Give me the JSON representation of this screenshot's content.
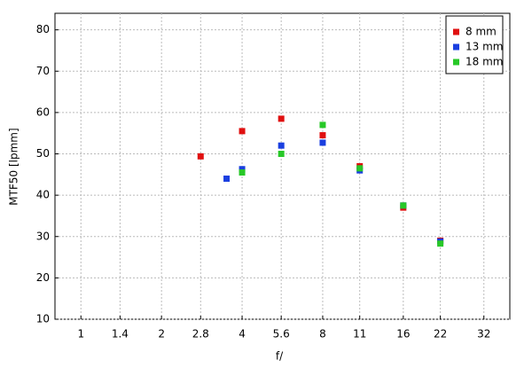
{
  "chart_data": {
    "type": "scatter",
    "x_label": "f/",
    "y_label": "MTF50 [lpmm]",
    "xscale": "log",
    "grid": true,
    "legend": "top-right",
    "xlim": [
      0.8,
      40
    ],
    "xticks": [
      1,
      1.4,
      2,
      2.8,
      4,
      5.6,
      8,
      11,
      16,
      22,
      32
    ],
    "ylim": [
      10,
      84
    ],
    "yticks": [
      10,
      20,
      30,
      40,
      50,
      60,
      70,
      80
    ],
    "series": [
      {
        "name": "8 mm",
        "color": "#e01010",
        "x": [
          2.8,
          4,
          5.6,
          8,
          11,
          16,
          22
        ],
        "values": [
          49.4,
          55.5,
          58.5,
          54.5,
          47,
          37,
          29
        ]
      },
      {
        "name": "13 mm",
        "color": "#1a3fe0",
        "x": [
          3.5,
          4,
          5.6,
          8,
          11,
          16,
          22
        ],
        "values": [
          44,
          46.3,
          52,
          52.7,
          46,
          37.5,
          28.8
        ]
      },
      {
        "name": "18 mm",
        "color": "#28c828",
        "x": [
          4,
          5.6,
          8,
          11,
          16,
          22
        ],
        "values": [
          45.5,
          50,
          57,
          46.5,
          37.5,
          28.3
        ]
      }
    ]
  }
}
